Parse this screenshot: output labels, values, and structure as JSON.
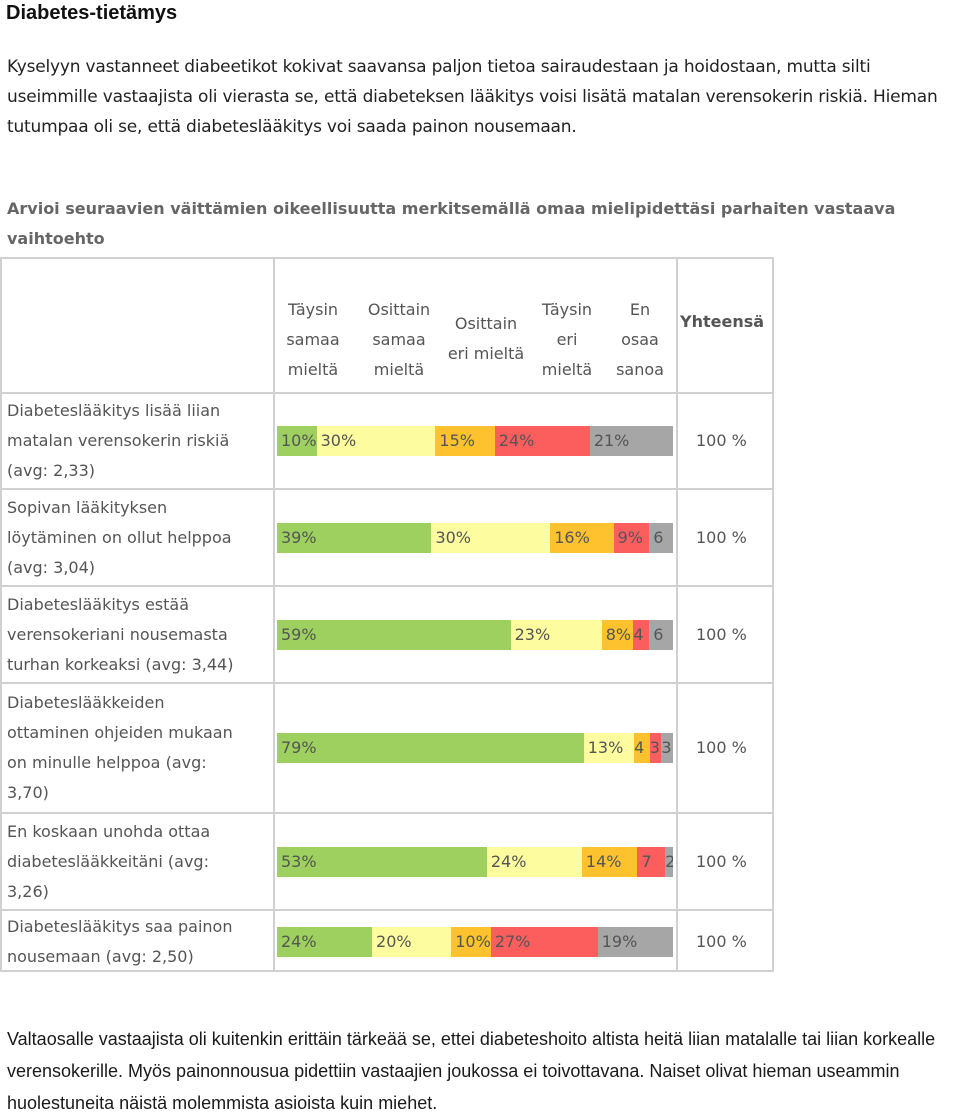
{
  "title": "Diabetes-tietämys",
  "intro": "Kyselyyn vastanneet diabeetikot kokivat saavansa paljon tietoa sairaudestaan ja hoidostaan, mutta silti useimmille vastaajista oli vierasta se, että diabeteksen lääkitys voisi lisätä matalan verensokerin riskiä. Hieman tutumpaa oli se, että diabeteslääkitys voi saada painon nousemaan.",
  "question": "Arvioi seuraavien väittämien oikeellisuutta merkitsemällä omaa mielipidettäsi parhaiten vastaava vaihtoehto",
  "headers": [
    {
      "line1": "Täysin",
      "line2": "samaa",
      "line3": "mieltä"
    },
    {
      "line1": "Osittain",
      "line2": "samaa",
      "line3": "mieltä"
    },
    {
      "line1": "Osittain",
      "line2": "eri mieltä"
    },
    {
      "line1": "Täysin",
      "line2": "eri",
      "line3": "mieltä"
    },
    {
      "line1": "En",
      "line2": "osaa",
      "line3": "sanoa"
    }
  ],
  "total_header": "Yhteensä",
  "colors": {
    "taysin_samaa": "#9dd05f",
    "osittain_samaa": "#fdfc9f",
    "osittain_eri": "#fdc22e",
    "taysin_eri": "#fc5e5e",
    "en_osaa": "#a6a6a6"
  },
  "rows": [
    {
      "label_lines": [
        "Diabeteslääkitys lisää liian",
        "matalan verensokerin riskiä",
        "(avg: 2,33)"
      ],
      "values": [
        10,
        30,
        15,
        24,
        21
      ],
      "labels": [
        "10%",
        "30%",
        "15%",
        "24%",
        "21%"
      ],
      "total": "100 %"
    },
    {
      "label_lines": [
        "Sopivan lääkityksen",
        "löytäminen on ollut helppoa",
        "(avg: 3,04)"
      ],
      "values": [
        39,
        30,
        16,
        9,
        6
      ],
      "labels": [
        "39%",
        "30%",
        "16%",
        "9%",
        "6"
      ],
      "total": "100 %"
    },
    {
      "label_lines": [
        "Diabeteslääkitys estää",
        "verensokeriani nousemasta",
        "turhan korkeaksi (avg: 3,44)"
      ],
      "values": [
        59,
        23,
        8,
        4,
        6
      ],
      "labels": [
        "59%",
        "23%",
        "8%",
        "4",
        "6"
      ],
      "total": "100 %"
    },
    {
      "label_lines": [
        "Diabeteslääkkeiden",
        "ottaminen ohjeiden mukaan",
        "on minulle helppoa (avg:",
        "3,70)"
      ],
      "values": [
        79,
        13,
        4,
        3,
        3
      ],
      "labels": [
        "79%",
        "13%",
        "4",
        "3",
        "3"
      ],
      "total": "100 %"
    },
    {
      "label_lines": [
        "En koskaan unohda ottaa",
        "diabeteslääkkeitäni (avg:",
        "3,26)"
      ],
      "values": [
        53,
        24,
        14,
        7,
        2
      ],
      "labels": [
        "53%",
        "24%",
        "14%",
        "7",
        "2"
      ],
      "total": "100 %"
    },
    {
      "label_lines": [
        "Diabeteslääkitys saa painon",
        "nousemaan (avg: 2,50)"
      ],
      "values": [
        24,
        20,
        10,
        27,
        19
      ],
      "labels": [
        "24%",
        "20%",
        "10%",
        "27%",
        "19%"
      ],
      "total": "100 %"
    }
  ],
  "outro": "Valtaosalle vastaajista oli kuitenkin erittäin tärkeää se, ettei diabeteshoito altista heitä liian matalalle tai liian korkealle verensokerille. Myös painonnousua pidettiin vastaajien joukossa ei toivottavana.  Naiset olivat hieman useammin huolestuneita näistä molemmista asioista kuin miehet."
}
